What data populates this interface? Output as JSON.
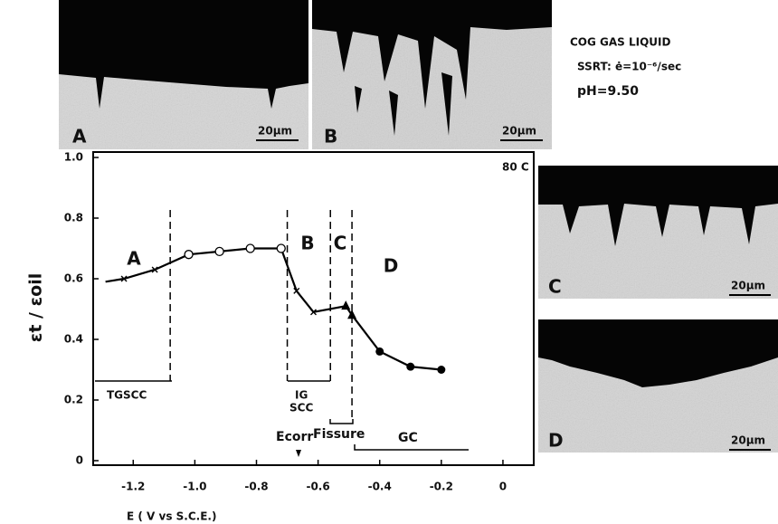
{
  "figure": {
    "conditions": [
      "COG GAS LIQUID",
      "SSRT: ė=10⁻⁶/sec",
      "pH=9.50"
    ]
  },
  "micrographs": [
    {
      "label": "A",
      "scale": "20µm"
    },
    {
      "label": "B",
      "scale": "20µm"
    },
    {
      "label": "C",
      "scale": "20µm"
    },
    {
      "label": "D",
      "scale": "20µm"
    }
  ],
  "chart_data": {
    "type": "line",
    "temperature": "80 C",
    "x_label": "E ( V vs S.C.E.)",
    "y_label": "εt / εoil",
    "series": [
      {
        "color": "#000000",
        "x": [
          -1.29,
          -1.23,
          -1.13,
          -1.02,
          -0.92,
          -0.82,
          -0.72,
          -0.67,
          -0.615,
          -0.51,
          -0.49,
          -0.4,
          -0.3,
          -0.2
        ],
        "values": [
          0.59,
          0.6,
          0.63,
          0.68,
          0.69,
          0.7,
          0.7,
          0.56,
          0.49,
          0.51,
          0.48,
          0.36,
          0.31,
          0.3
        ],
        "markers": [
          null,
          "x",
          "x",
          "open-circle",
          "open-circle",
          "open-circle",
          "open-circle",
          "x",
          "x",
          "triangle",
          "triangle",
          "dot",
          "dot",
          "dot"
        ]
      }
    ],
    "boundaries": [
      -1.08,
      -0.7,
      -0.56,
      -0.49
    ],
    "regions": [
      "A",
      "B",
      "C",
      "D"
    ],
    "annotations": {
      "tgscc": "TGSCC",
      "ig": "IG",
      "scc": "SCC",
      "fissure": "Fissure",
      "gc": "GC",
      "ecorr": "Ecorr"
    },
    "xlim": [
      -1.33,
      0.1
    ],
    "ylim": [
      0,
      1
    ],
    "xticks": [
      -1.2,
      {
        "value": -1,
        "label": "-1.0"
      },
      -0.8,
      -0.6,
      -0.4,
      -0.2,
      0
    ],
    "yticks": [
      0,
      0.2,
      0.4,
      0.6,
      0.8,
      {
        "value": 1,
        "label": "1.0"
      }
    ]
  }
}
